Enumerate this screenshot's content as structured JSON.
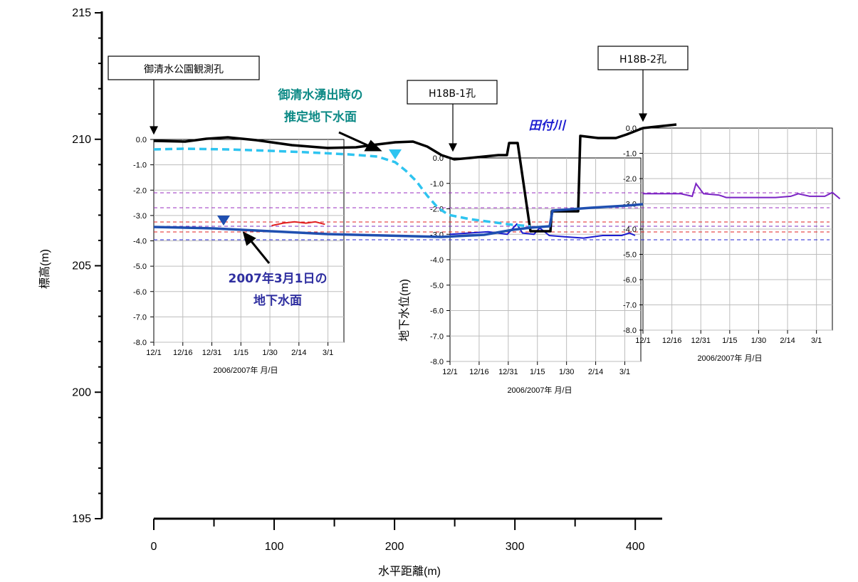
{
  "chart_data": [
    {
      "id": "main",
      "type": "line",
      "ylabel": "標高(m)",
      "xlabel": "水平距離(m)",
      "xlim": [
        0,
        420
      ],
      "ylim": [
        195,
        215
      ],
      "xticks": [
        "0",
        "100",
        "200",
        "300",
        "400"
      ],
      "xtick_values": [
        0,
        100,
        200,
        300,
        400
      ],
      "yticks": [
        "195",
        "200",
        "205",
        "210",
        "215"
      ],
      "ytick_values": [
        195,
        200,
        205,
        210,
        215
      ]
    },
    {
      "id": "inset1",
      "type": "line",
      "xlabel": "2006/2007年 月/日",
      "yticks": [
        "0.0",
        "-1.0",
        "-2.0",
        "-3.0",
        "-4.0",
        "-5.0",
        "-6.0",
        "-7.0",
        "-8.0"
      ],
      "xticks": [
        "12/1",
        "12/16",
        "12/31",
        "1/15",
        "1/30",
        "2/14",
        "3/1"
      ],
      "ylim": [
        -8,
        0
      ],
      "series": [
        {
          "color": "#e02020",
          "values": [
            [
              62,
              -3.4
            ],
            [
              68,
              -3.3
            ],
            [
              74,
              -3.25
            ],
            [
              80,
              -3.3
            ],
            [
              85,
              -3.25
            ],
            [
              90,
              -3.35
            ]
          ]
        }
      ]
    },
    {
      "id": "inset2",
      "type": "line",
      "ylabel": "地下水位(m)",
      "xlabel": "2006/2007年 月/日",
      "yticks": [
        "0.0",
        "-1.0",
        "-2.0",
        "-3.0",
        "-4.0",
        "-5.0",
        "-6.0",
        "-7.0",
        "-8.0"
      ],
      "xticks": [
        "12/1",
        "12/16",
        "12/31",
        "1/15",
        "1/30",
        "2/14",
        "3/1"
      ],
      "ylim": [
        -8,
        0
      ],
      "series": [
        {
          "color": "#1c1cd0",
          "values": [
            [
              0,
              -3.0
            ],
            [
              20,
              -2.9
            ],
            [
              30,
              -3.0
            ],
            [
              35,
              -2.6
            ],
            [
              38,
              -2.95
            ],
            [
              44,
              -3.0
            ],
            [
              47,
              -2.75
            ],
            [
              52,
              -3.05
            ],
            [
              60,
              -3.1
            ],
            [
              70,
              -3.15
            ],
            [
              80,
              -3.05
            ],
            [
              90,
              -3.05
            ],
            [
              94,
              -2.95
            ],
            [
              97,
              -3.05
            ]
          ]
        }
      ]
    },
    {
      "id": "inset3",
      "type": "line",
      "xlabel": "2006/2007年 月/日",
      "yticks": [
        "0.0",
        "-1.0",
        "-2.0",
        "-3.0",
        "-4.0",
        "-5.0",
        "-6.0",
        "-7.0",
        "-8.0"
      ],
      "xticks": [
        "12/1",
        "12/16",
        "12/31",
        "1/15",
        "1/30",
        "2/14",
        "3/1"
      ],
      "ylim": [
        -8,
        0
      ],
      "series": [
        {
          "color": "#7b24c4",
          "values": [
            [
              0,
              -2.6
            ],
            [
              20,
              -2.6
            ],
            [
              26,
              -2.7
            ],
            [
              28,
              -2.2
            ],
            [
              32,
              -2.6
            ],
            [
              40,
              -2.65
            ],
            [
              44,
              -2.75
            ],
            [
              60,
              -2.75
            ],
            [
              70,
              -2.75
            ],
            [
              78,
              -2.7
            ],
            [
              82,
              -2.6
            ],
            [
              88,
              -2.7
            ],
            [
              96,
              -2.7
            ],
            [
              100,
              -2.55
            ],
            [
              104,
              -2.8
            ]
          ]
        }
      ]
    }
  ],
  "annotations": {
    "well_a": "御清水公園観測孔",
    "well_b": "H18B-1孔",
    "well_c": "H18B-2孔",
    "spring_line1": "御清水湧出時の",
    "spring_line2": "推定地下水面",
    "gw_line1": "2007年3月1日の",
    "gw_line2": "地下水面",
    "river": "田付川"
  },
  "colors": {
    "ground": "#000000",
    "spring_line": "#2ec4f0",
    "gw_line": "#1f4fb0",
    "spring_text": "#0d8a86",
    "gw_text": "#2f2fa0",
    "river_text": "#1c1cd0",
    "ref_purple": "#9a2cc0",
    "ref_red": "#e02020",
    "ref_blue": "#2020d0"
  }
}
